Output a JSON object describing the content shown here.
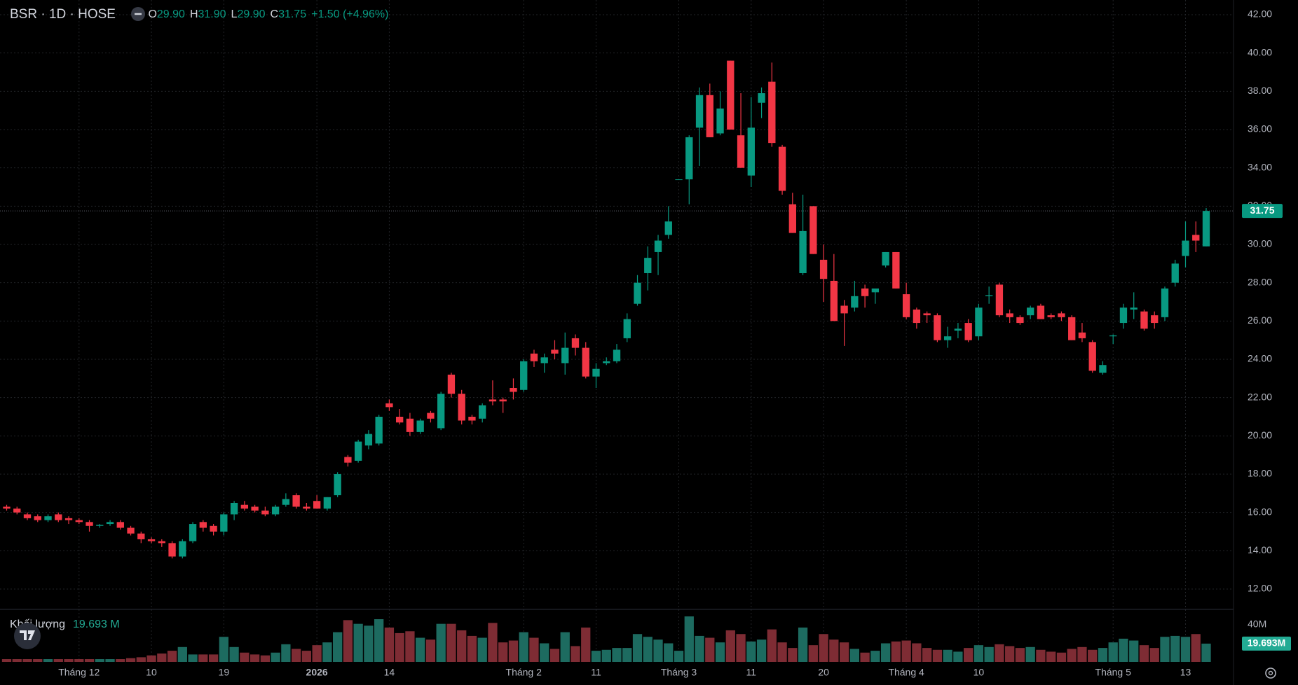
{
  "chart_data": {
    "type": "candlestick",
    "title": "BSR · 1D · HOSE",
    "legend_fields": [
      {
        "label": "O",
        "value": "29.90"
      },
      {
        "label": "H",
        "value": "31.90"
      },
      {
        "label": "L",
        "value": "29.90"
      },
      {
        "label": "C",
        "value": "31.75"
      }
    ],
    "change": "+1.50 (+4.96%)",
    "categories": [
      null,
      null,
      null,
      null,
      null,
      null,
      null,
      "Tháng 12",
      null,
      null,
      null,
      null,
      null,
      null,
      "10",
      null,
      null,
      null,
      null,
      null,
      null,
      "19",
      null,
      null,
      null,
      null,
      null,
      null,
      null,
      null,
      "2026",
      null,
      null,
      null,
      null,
      null,
      null,
      "14",
      null,
      null,
      null,
      null,
      null,
      null,
      null,
      null,
      null,
      null,
      null,
      null,
      "Tháng 2",
      null,
      null,
      null,
      null,
      null,
      null,
      "11",
      null,
      null,
      null,
      null,
      null,
      null,
      null,
      "Tháng 3",
      null,
      null,
      null,
      null,
      null,
      null,
      "11",
      null,
      null,
      null,
      null,
      null,
      null,
      "20",
      null,
      null,
      null,
      null,
      null,
      null,
      null,
      "Tháng 4",
      null,
      null,
      null,
      null,
      null,
      null,
      "10",
      null,
      null,
      null,
      null,
      null,
      null,
      null,
      null,
      null,
      null,
      null,
      null,
      "Tháng 5",
      null,
      null,
      null,
      null,
      null,
      null,
      "13",
      null,
      null
    ],
    "open": [
      16.3,
      16.2,
      15.9,
      15.8,
      15.6,
      15.9,
      15.7,
      15.6,
      15.5,
      15.3,
      15.4,
      15.5,
      15.2,
      14.9,
      14.6,
      14.5,
      14.4,
      13.7,
      14.5,
      15.5,
      15.3,
      15.0,
      15.9,
      16.4,
      16.3,
      16.1,
      15.9,
      16.4,
      16.9,
      16.3,
      16.6,
      16.2,
      16.9,
      18.9,
      18.7,
      19.5,
      19.6,
      21.7,
      21.0,
      20.9,
      20.2,
      21.2,
      20.4,
      23.2,
      22.2,
      21.0,
      20.9,
      21.9,
      21.9,
      22.5,
      22.4,
      24.3,
      23.8,
      24.5,
      23.8,
      25.1,
      24.6,
      23.1,
      23.8,
      23.9,
      25.1,
      26.9,
      28.5,
      29.6,
      30.5,
      33.4,
      33.4,
      36.1,
      37.8,
      35.8,
      39.6,
      35.7,
      33.6,
      37.4,
      38.5,
      35.1,
      32.1,
      28.5,
      32.0,
      29.2,
      28.1,
      26.8,
      26.7,
      27.7,
      27.5,
      28.9,
      29.6,
      27.4,
      26.6,
      26.4,
      26.3,
      25.0,
      25.5,
      25.9,
      25.2,
      27.3,
      27.9,
      26.4,
      26.2,
      26.3,
      26.8,
      26.3,
      26.4,
      26.2,
      25.4,
      24.9,
      23.3,
      25.2,
      25.9,
      26.6,
      26.5,
      26.3,
      26.2,
      28.0,
      29.4,
      30.5,
      29.9
    ],
    "high": [
      16.4,
      16.3,
      16.0,
      15.9,
      15.9,
      16.0,
      15.8,
      15.7,
      15.6,
      15.4,
      15.6,
      15.6,
      15.3,
      15.0,
      14.7,
      14.6,
      14.5,
      14.6,
      15.5,
      15.6,
      15.4,
      16.0,
      16.6,
      16.6,
      16.4,
      16.3,
      16.4,
      17.0,
      17.0,
      16.5,
      16.9,
      16.8,
      18.1,
      19.0,
      19.8,
      20.3,
      21.1,
      21.9,
      21.4,
      21.2,
      20.9,
      21.3,
      22.3,
      23.3,
      22.4,
      21.1,
      21.7,
      22.9,
      22.0,
      23.0,
      24.0,
      24.5,
      24.3,
      25.0,
      25.4,
      25.3,
      24.9,
      23.8,
      24.1,
      24.8,
      26.4,
      28.4,
      29.9,
      30.5,
      32.0,
      33.4,
      35.7,
      38.2,
      38.4,
      38.0,
      39.6,
      37.9,
      37.7,
      38.2,
      39.5,
      35.2,
      32.7,
      32.6,
      32.0,
      30.0,
      29.5,
      27.1,
      28.1,
      27.9,
      27.6,
      29.6,
      29.6,
      28.0,
      26.7,
      26.5,
      26.4,
      25.7,
      25.9,
      26.1,
      26.9,
      27.8,
      28.0,
      26.6,
      26.3,
      26.8,
      26.9,
      26.4,
      26.5,
      26.3,
      25.9,
      25.0,
      23.9,
      25.3,
      26.9,
      27.5,
      26.6,
      26.5,
      27.8,
      29.2,
      31.2,
      31.2,
      31.9
    ],
    "low": [
      16.1,
      15.9,
      15.6,
      15.5,
      15.5,
      15.5,
      15.4,
      15.4,
      15.0,
      15.2,
      15.3,
      15.1,
      14.8,
      14.4,
      14.4,
      14.2,
      13.6,
      13.6,
      14.4,
      15.0,
      14.8,
      14.8,
      15.6,
      16.1,
      16.0,
      15.8,
      15.8,
      16.3,
      16.2,
      16.1,
      16.2,
      16.1,
      16.8,
      18.4,
      18.6,
      19.3,
      19.5,
      21.3,
      20.6,
      20.0,
      20.1,
      20.7,
      20.3,
      22.0,
      20.6,
      20.6,
      20.7,
      21.6,
      21.2,
      21.9,
      22.3,
      23.6,
      23.3,
      24.0,
      23.2,
      24.2,
      23.0,
      22.5,
      23.7,
      23.8,
      24.9,
      26.8,
      27.6,
      28.4,
      30.3,
      33.4,
      32.1,
      34.1,
      35.6,
      35.7,
      36.0,
      34.0,
      33.0,
      36.6,
      35.1,
      32.6,
      30.6,
      28.4,
      29.5,
      27.0,
      26.0,
      24.7,
      26.5,
      26.7,
      26.9,
      28.8,
      27.7,
      26.1,
      25.6,
      25.9,
      24.9,
      24.6,
      25.1,
      24.9,
      25.0,
      26.9,
      26.2,
      25.9,
      25.8,
      26.1,
      26.1,
      26.1,
      26.0,
      25.0,
      24.9,
      23.3,
      23.2,
      24.8,
      25.6,
      26.1,
      25.5,
      25.6,
      26.0,
      27.8,
      28.8,
      29.6,
      29.9
    ],
    "close": [
      16.2,
      16.0,
      15.7,
      15.6,
      15.8,
      15.6,
      15.6,
      15.5,
      15.3,
      15.35,
      15.5,
      15.2,
      14.9,
      14.6,
      14.5,
      14.4,
      13.7,
      14.5,
      15.4,
      15.2,
      15.0,
      15.9,
      16.5,
      16.2,
      16.1,
      15.9,
      16.3,
      16.7,
      16.3,
      16.2,
      16.2,
      16.8,
      18.0,
      18.6,
      19.7,
      20.1,
      21.0,
      21.5,
      20.7,
      20.2,
      20.8,
      20.9,
      22.2,
      22.2,
      20.8,
      20.8,
      21.6,
      21.8,
      21.8,
      22.3,
      23.9,
      23.9,
      24.1,
      24.3,
      24.6,
      24.6,
      23.1,
      23.5,
      23.9,
      24.5,
      26.1,
      28.0,
      29.3,
      30.2,
      31.2,
      33.4,
      35.6,
      37.8,
      35.6,
      37.1,
      36.0,
      34.0,
      36.1,
      37.9,
      35.3,
      32.8,
      30.6,
      30.7,
      29.5,
      28.2,
      26.0,
      26.4,
      27.3,
      27.3,
      27.7,
      29.6,
      27.7,
      26.2,
      25.9,
      26.3,
      25.0,
      25.2,
      25.6,
      25.0,
      26.7,
      27.35,
      26.3,
      26.2,
      25.9,
      26.7,
      26.1,
      26.2,
      26.2,
      25.0,
      25.1,
      23.4,
      23.7,
      25.25,
      26.7,
      26.7,
      25.6,
      25.9,
      27.7,
      29.0,
      30.2,
      30.2,
      31.75
    ],
    "up_color": "#089981",
    "down_color": "#f23645",
    "ylim": [
      12,
      42
    ],
    "yticks": [
      {
        "value": 12,
        "label": "12.00"
      },
      {
        "value": 14,
        "label": "14.00"
      },
      {
        "value": 16,
        "label": "16.00"
      },
      {
        "value": 18,
        "label": "18.00"
      },
      {
        "value": 20,
        "label": "20.00"
      },
      {
        "value": 22,
        "label": "22.00"
      },
      {
        "value": 24,
        "label": "24.00"
      },
      {
        "value": 26,
        "label": "26.00"
      },
      {
        "value": 28,
        "label": "28.00"
      },
      {
        "value": 30,
        "label": "30.00"
      },
      {
        "value": 32,
        "label": "32.00"
      },
      {
        "value": 34,
        "label": "34.00"
      },
      {
        "value": 36,
        "label": "36.00"
      },
      {
        "value": 38,
        "label": "38.00"
      },
      {
        "value": 40,
        "label": "40.00"
      },
      {
        "value": 42,
        "label": "42.00"
      }
    ],
    "grid": true,
    "volume": {
      "title": "Khối lượng",
      "legend_value": "19.693 M",
      "last_label": "19.693M",
      "up_color": "#1d6b60",
      "down_color": "#7e2c34",
      "ylim": [
        0,
        40
      ],
      "yticks": [
        {
          "value": 40,
          "label": "40M"
        }
      ],
      "values": [
        3,
        3,
        3,
        3,
        3,
        3,
        3,
        3,
        3,
        3,
        3,
        3,
        4,
        5,
        7,
        9,
        12,
        16,
        8,
        8,
        8,
        27,
        16,
        10,
        8,
        7,
        10,
        19,
        14,
        12,
        18,
        21,
        32,
        45,
        41,
        39,
        46,
        37,
        31,
        33,
        26,
        24,
        41,
        41,
        34,
        28,
        26,
        42,
        21,
        23,
        32,
        26,
        20,
        14,
        32,
        17,
        37,
        12,
        13,
        15,
        15,
        30,
        27,
        24,
        20,
        12,
        49,
        28,
        26,
        21,
        34,
        30,
        22,
        24,
        35,
        21,
        15,
        37,
        18,
        30,
        24,
        21,
        14,
        10,
        12,
        20,
        22,
        23,
        20,
        15,
        13,
        13,
        11,
        15,
        18,
        16,
        19,
        17,
        15,
        16,
        13,
        11,
        10,
        14,
        16,
        13,
        15,
        21,
        25,
        23,
        18,
        15,
        27,
        28,
        27,
        30,
        19.693
      ]
    }
  }
}
